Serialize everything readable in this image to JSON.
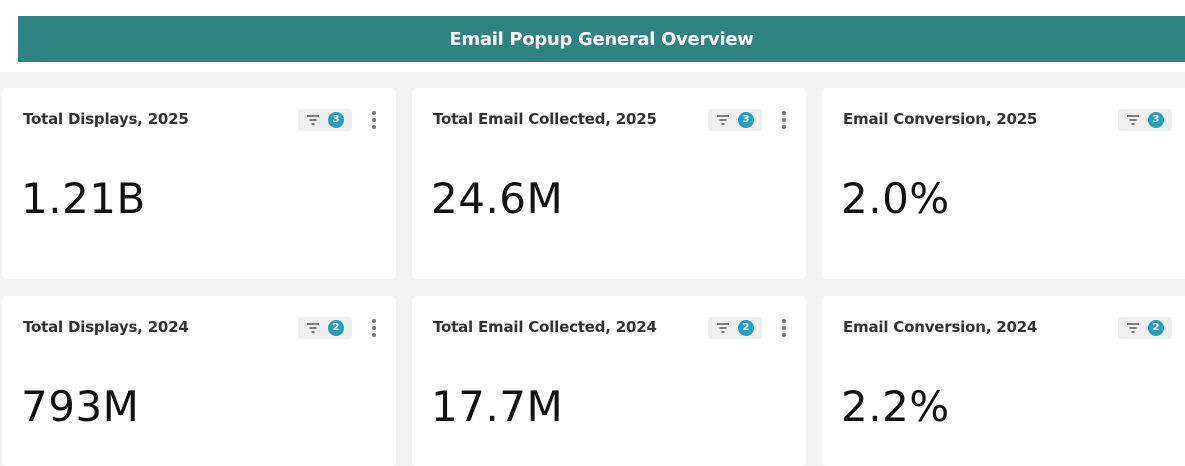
{
  "header": {
    "title": "Email Popup General Overview"
  },
  "rows": [
    {
      "cards": [
        {
          "title": "Total Displays, 2025",
          "filters": 3,
          "value": "1.21B"
        },
        {
          "title": "Total Email Collected, 2025",
          "filters": 3,
          "value": "24.6M"
        },
        {
          "title": "Email Conversion, 2025",
          "filters": 3,
          "value": "2.0%"
        }
      ]
    },
    {
      "cards": [
        {
          "title": "Total Displays, 2024",
          "filters": 2,
          "value": "793M"
        },
        {
          "title": "Total Email Collected, 2024",
          "filters": 2,
          "value": "17.7M"
        },
        {
          "title": "Email Conversion, 2024",
          "filters": 2,
          "value": "2.2%"
        }
      ]
    }
  ]
}
